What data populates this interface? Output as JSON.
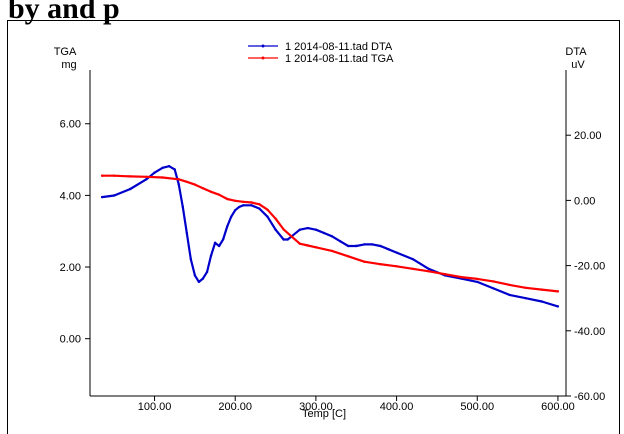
{
  "page": {
    "heading": "by and p"
  },
  "chart_data": {
    "type": "line",
    "title": "",
    "xlabel": "Temp [C]",
    "ylabel_left": "TGA",
    "ylabel_left_unit": "mg",
    "ylabel_right": "DTA",
    "ylabel_right_unit": "uV",
    "xlim": [
      20,
      610
    ],
    "ylim_left": [
      -1.6,
      7.5
    ],
    "ylim_right": [
      -60,
      40
    ],
    "x_ticks": [
      "100.00",
      "200.00",
      "300.00",
      "400.00",
      "500.00",
      "600.00"
    ],
    "y_left_ticks": [
      "0.00",
      "2.00",
      "4.00",
      "6.00"
    ],
    "y_right_ticks": [
      "-60.00",
      "-40.00",
      "-20.00",
      "0.00",
      "20.00"
    ],
    "legend_position": "top-center",
    "grid": false,
    "series": [
      {
        "name": "1 2014-08-11.tad DTA",
        "axis": "right",
        "color": "#0000cc",
        "x": [
          35,
          50,
          70,
          90,
          100,
          110,
          118,
          125,
          130,
          135,
          140,
          145,
          150,
          155,
          160,
          165,
          170,
          175,
          180,
          185,
          190,
          195,
          200,
          205,
          210,
          220,
          230,
          240,
          250,
          260,
          265,
          270,
          280,
          290,
          300,
          310,
          320,
          330,
          340,
          350,
          360,
          370,
          380,
          390,
          400,
          420,
          440,
          460,
          480,
          500,
          520,
          540,
          560,
          580,
          600
        ],
        "y": [
          1,
          1.5,
          3.5,
          6.5,
          8.5,
          10,
          10.5,
          9.5,
          5,
          -2,
          -10,
          -18,
          -23,
          -25,
          -24,
          -22,
          -17,
          -13,
          -14,
          -12,
          -8,
          -5,
          -3,
          -2,
          -1.5,
          -1.5,
          -2.5,
          -5,
          -9,
          -12,
          -12,
          -11,
          -9,
          -8.5,
          -9,
          -10,
          -11,
          -12.5,
          -14,
          -14,
          -13.5,
          -13.5,
          -14,
          -15,
          -16,
          -18,
          -21,
          -23,
          -24,
          -25,
          -27,
          -29,
          -30,
          -31,
          -32.5
        ]
      },
      {
        "name": "1 2014-08-11.tad TGA",
        "axis": "left",
        "color": "#ff0000",
        "x": [
          35,
          50,
          70,
          90,
          110,
          130,
          140,
          150,
          160,
          170,
          180,
          190,
          200,
          210,
          220,
          230,
          240,
          250,
          260,
          270,
          280,
          290,
          300,
          320,
          340,
          360,
          380,
          400,
          420,
          440,
          460,
          480,
          500,
          520,
          540,
          560,
          580,
          600
        ],
        "y": [
          4.55,
          4.55,
          4.53,
          4.52,
          4.5,
          4.45,
          4.38,
          4.3,
          4.2,
          4.1,
          4.02,
          3.9,
          3.85,
          3.82,
          3.8,
          3.75,
          3.6,
          3.35,
          3.05,
          2.85,
          2.65,
          2.6,
          2.55,
          2.45,
          2.3,
          2.15,
          2.08,
          2.02,
          1.95,
          1.88,
          1.8,
          1.72,
          1.67,
          1.6,
          1.5,
          1.42,
          1.37,
          1.32
        ]
      }
    ]
  }
}
